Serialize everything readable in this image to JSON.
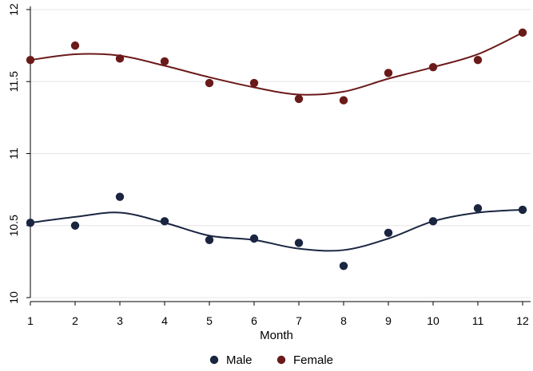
{
  "chart_data": {
    "type": "line",
    "title": "",
    "xlabel": "Month",
    "ylabel": "",
    "x": [
      1,
      2,
      3,
      4,
      5,
      6,
      7,
      8,
      9,
      10,
      11,
      12
    ],
    "xlim": [
      1,
      12
    ],
    "ylim": [
      10,
      12
    ],
    "yticks": [
      "10",
      "10.5",
      "11",
      "11.5",
      "12"
    ],
    "xticks": [
      "1",
      "2",
      "3",
      "4",
      "5",
      "6",
      "7",
      "8",
      "9",
      "10",
      "11",
      "12"
    ],
    "grid": true,
    "legend_position": "bottom",
    "series": [
      {
        "name": "Male",
        "color": "#1a2540",
        "points": [
          10.52,
          10.5,
          10.7,
          10.53,
          10.4,
          10.41,
          10.38,
          10.22,
          10.45,
          10.53,
          10.62,
          10.61
        ],
        "fitted": [
          10.52,
          10.56,
          10.59,
          10.52,
          10.43,
          10.4,
          10.34,
          10.33,
          10.41,
          10.53,
          10.59,
          10.61
        ]
      },
      {
        "name": "Female",
        "color": "#6b1a1a",
        "points": [
          11.65,
          11.75,
          11.66,
          11.64,
          11.49,
          11.49,
          11.38,
          11.37,
          11.56,
          11.6,
          11.65,
          11.84
        ],
        "fitted": [
          11.65,
          11.69,
          11.68,
          11.61,
          11.53,
          11.46,
          11.41,
          11.43,
          11.52,
          11.6,
          11.69,
          11.84
        ]
      }
    ]
  }
}
